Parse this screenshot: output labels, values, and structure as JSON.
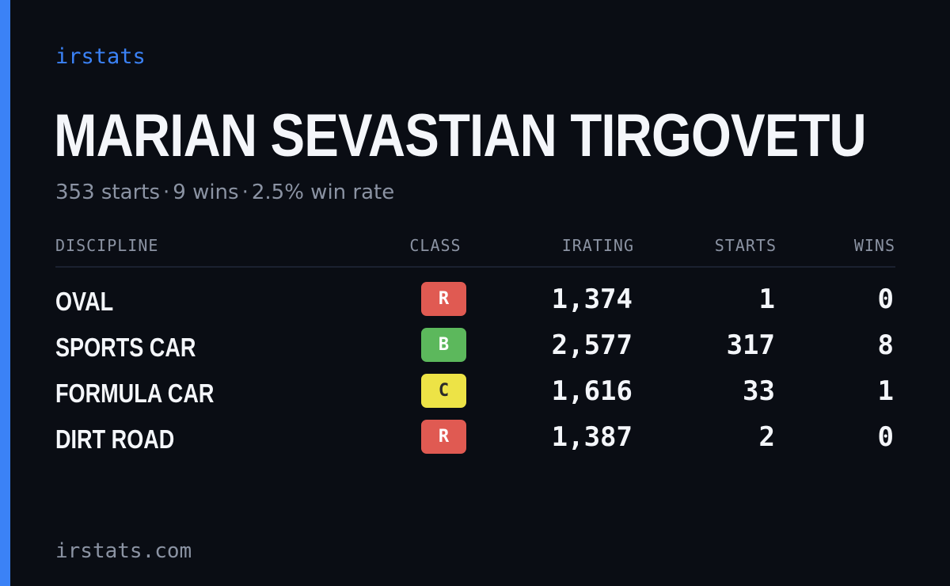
{
  "brand": "irstats",
  "driver": {
    "name": "MARIAN SEVASTIAN TIRGOVETU"
  },
  "summary": {
    "starts": "353 starts",
    "wins": "9 wins",
    "win_rate": "2.5% win rate",
    "separator": "·"
  },
  "table": {
    "headers": {
      "discipline": "DISCIPLINE",
      "class": "CLASS",
      "irating": "IRATING",
      "starts": "STARTS",
      "wins": "WINS"
    },
    "rows": [
      {
        "discipline": "OVAL",
        "class": "R",
        "class_color": "#e05a52",
        "class_text_color": "#ffffff",
        "irating": "1,374",
        "starts": "1",
        "wins": "0"
      },
      {
        "discipline": "SPORTS CAR",
        "class": "B",
        "class_color": "#5cb85c",
        "class_text_color": "#ffffff",
        "irating": "2,577",
        "starts": "317",
        "wins": "8"
      },
      {
        "discipline": "FORMULA CAR",
        "class": "C",
        "class_color": "#ede346",
        "class_text_color": "#2a2a2a",
        "irating": "1,616",
        "starts": "33",
        "wins": "1"
      },
      {
        "discipline": "DIRT ROAD",
        "class": "R",
        "class_color": "#e05a52",
        "class_text_color": "#ffffff",
        "irating": "1,387",
        "starts": "2",
        "wins": "0"
      }
    ]
  },
  "footer": "irstats.com",
  "colors": {
    "background": "#0a0d14",
    "accent": "#3b82f6",
    "muted_text": "#8b93a3",
    "primary_text": "#f4f6fa"
  }
}
